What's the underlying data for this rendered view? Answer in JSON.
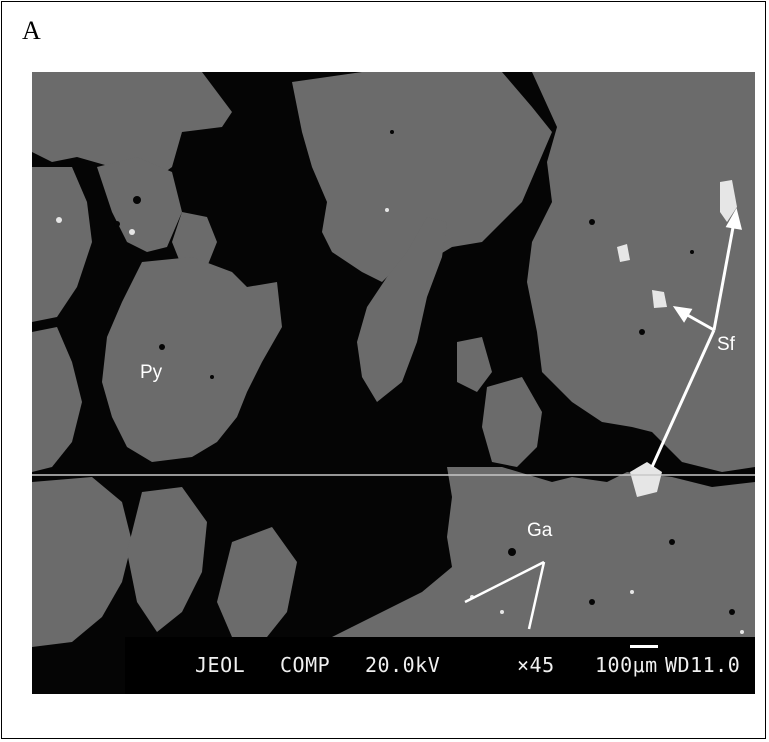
{
  "panel_label": "A",
  "labels": {
    "pyrite": "Py",
    "sphalerite": "Sf",
    "galena": "Ga"
  },
  "info_bar": {
    "manufacturer": "JEOL",
    "mode": "COMP",
    "voltage": "20.0kV",
    "magnification": "×45",
    "scale": "100μm",
    "working_distance": "WD11.0"
  },
  "colors": {
    "mineral_grey": "#6b6b6b",
    "void_black": "#050505",
    "bright_phase": "#e6e6e6"
  }
}
